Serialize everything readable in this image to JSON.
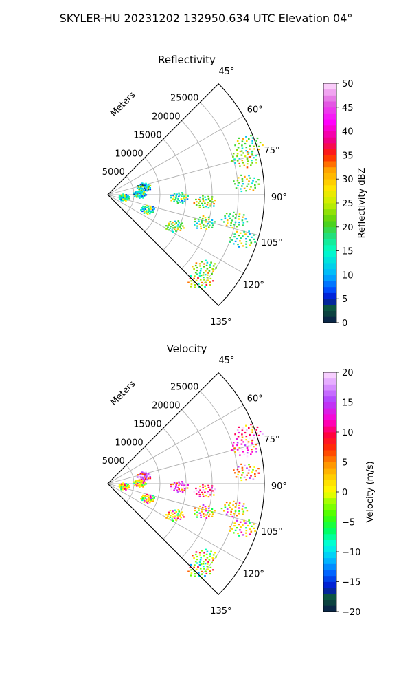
{
  "figure": {
    "suptitle": "SKYLER-HU  20231202  132950.634 UTC Elevation 04°"
  },
  "chart_data": [
    {
      "type": "heatmap",
      "subtype": "polar-sector radar PPI",
      "title": "Reflectivity",
      "radial_label": "Meters",
      "range_ticks": [
        5000,
        10000,
        15000,
        20000,
        25000
      ],
      "range_tick_labels": [
        "5000",
        "10000",
        "15000",
        "20000",
        "25000"
      ],
      "range_max": 30000,
      "azimuth_ticks": [
        "45°",
        "60°",
        "75°",
        "90°",
        "105°",
        "120°",
        "135°"
      ],
      "azimuth_values": [
        45,
        60,
        75,
        90,
        105,
        120,
        135
      ],
      "azimuth_range": [
        45,
        135
      ],
      "grid": true,
      "colorbar": {
        "label": "Reflectivity dBZ",
        "min": 0,
        "max": 50,
        "ticks": [
          "0",
          "5",
          "10",
          "15",
          "20",
          "25",
          "30",
          "35",
          "40",
          "45",
          "50"
        ]
      },
      "echoes": [
        {
          "az": 75,
          "r": 27000,
          "value": 22
        },
        {
          "az": 85,
          "r": 26500,
          "value": 20
        },
        {
          "az": 70,
          "r": 28500,
          "value": 20
        },
        {
          "az": 94,
          "r": 18500,
          "value": 21
        },
        {
          "az": 92,
          "r": 13500,
          "value": 17
        },
        {
          "az": 101,
          "r": 24500,
          "value": 19
        },
        {
          "az": 106,
          "r": 19000,
          "value": 19
        },
        {
          "az": 108,
          "r": 27000,
          "value": 18
        },
        {
          "az": 127,
          "r": 23000,
          "value": 21
        },
        {
          "az": 133,
          "r": 24000,
          "value": 24
        },
        {
          "az": 77,
          "r": 7000,
          "value": 12
        },
        {
          "az": 88,
          "r": 6000,
          "value": 13
        },
        {
          "az": 110,
          "r": 8000,
          "value": 16
        },
        {
          "az": 98,
          "r": 3000,
          "value": 16
        },
        {
          "az": 115,
          "r": 14000,
          "value": 20
        }
      ]
    },
    {
      "type": "heatmap",
      "subtype": "polar-sector radar PPI",
      "title": "Velocity",
      "radial_label": "Meters",
      "range_ticks": [
        5000,
        10000,
        15000,
        20000,
        25000
      ],
      "range_tick_labels": [
        "5000",
        "10000",
        "15000",
        "20000",
        "25000"
      ],
      "range_max": 30000,
      "azimuth_ticks": [
        "45°",
        "60°",
        "75°",
        "90°",
        "105°",
        "120°",
        "135°"
      ],
      "azimuth_values": [
        45,
        60,
        75,
        90,
        105,
        120,
        135
      ],
      "azimuth_range": [
        45,
        135
      ],
      "grid": true,
      "colorbar": {
        "label": "Velocity (m/s)",
        "min": -20,
        "max": 20,
        "ticks": [
          "−20",
          "−15",
          "−10",
          "−5",
          "0",
          "5",
          "10",
          "15",
          "20"
        ]
      },
      "echoes": [
        {
          "az": 75,
          "r": 27000,
          "value": 12
        },
        {
          "az": 85,
          "r": 26500,
          "value": 6
        },
        {
          "az": 70,
          "r": 28500,
          "value": 10
        },
        {
          "az": 94,
          "r": 18500,
          "value": 10
        },
        {
          "az": 92,
          "r": 13500,
          "value": 13
        },
        {
          "az": 101,
          "r": 24500,
          "value": 3
        },
        {
          "az": 106,
          "r": 19000,
          "value": 3
        },
        {
          "az": 108,
          "r": 27000,
          "value": 2
        },
        {
          "az": 127,
          "r": 23000,
          "value": -2
        },
        {
          "az": 133,
          "r": 24000,
          "value": -3
        },
        {
          "az": 77,
          "r": 7000,
          "value": 15
        },
        {
          "az": 88,
          "r": 6000,
          "value": 1
        },
        {
          "az": 110,
          "r": 8000,
          "value": 1
        },
        {
          "az": 98,
          "r": 3000,
          "value": 0
        },
        {
          "az": 115,
          "r": 14000,
          "value": 1
        }
      ]
    }
  ]
}
